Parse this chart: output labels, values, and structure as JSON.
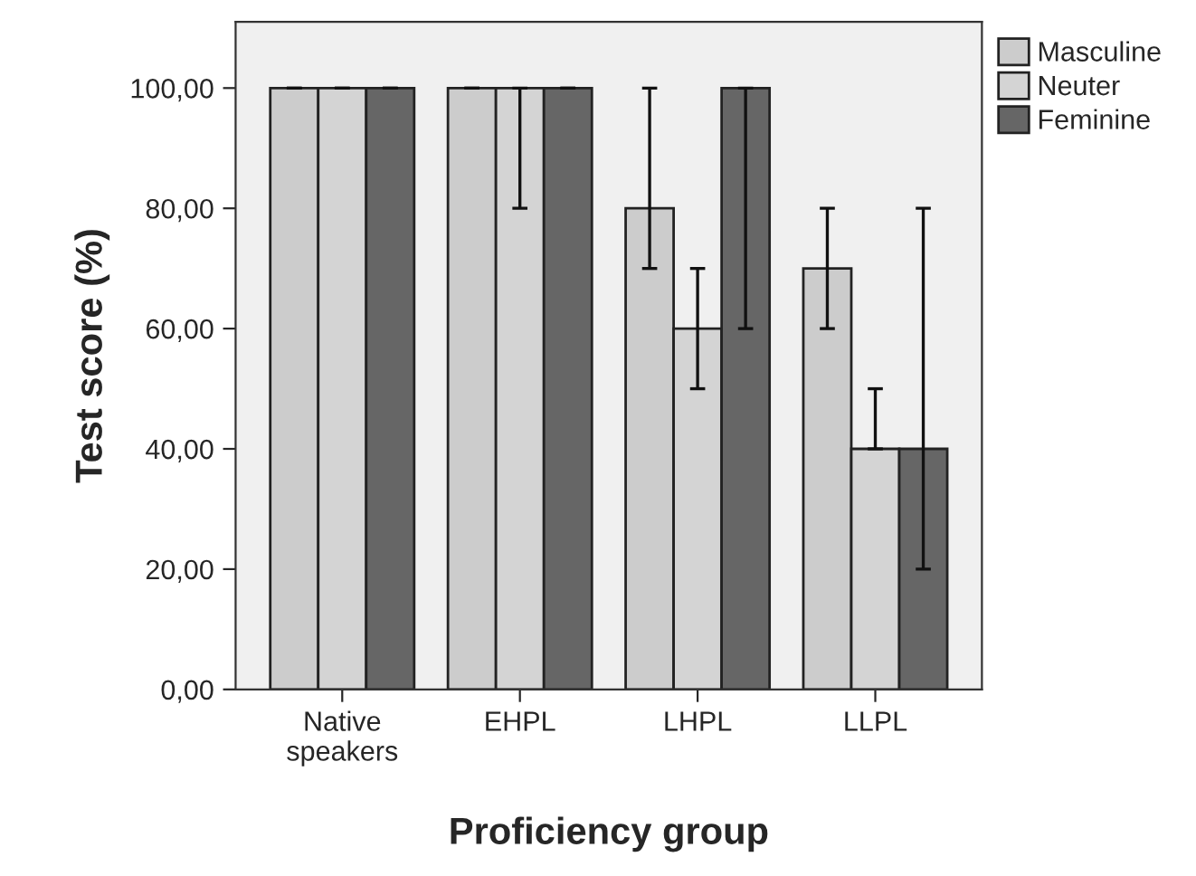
{
  "chart_data": {
    "type": "bar",
    "xlabel": "Proficiency group",
    "ylabel": "Test score (%)",
    "categories": [
      "Native\nspeakers",
      "EHPL",
      "LHPL",
      "LLPL"
    ],
    "series": [
      {
        "name": "Masculine",
        "color": "#cccccc",
        "values": [
          100,
          100,
          80,
          70
        ],
        "errors": [
          [
            100,
            100
          ],
          [
            100,
            100
          ],
          [
            70,
            100
          ],
          [
            60,
            80
          ]
        ]
      },
      {
        "name": "Neuter",
        "color": "#d4d4d4",
        "values": [
          100,
          100,
          60,
          40
        ],
        "errors": [
          [
            100,
            100
          ],
          [
            80,
            100
          ],
          [
            50,
            70
          ],
          [
            40,
            50
          ]
        ]
      },
      {
        "name": "Feminine",
        "color": "#666666",
        "values": [
          100,
          100,
          100,
          40
        ],
        "errors": [
          [
            100,
            100
          ],
          [
            100,
            100
          ],
          [
            60,
            100
          ],
          [
            20,
            80
          ]
        ]
      }
    ],
    "ylim": [
      0,
      111
    ],
    "yticks": [
      {
        "value": 0,
        "label": "0,00"
      },
      {
        "value": 20,
        "label": "20,00"
      },
      {
        "value": 40,
        "label": "40,00"
      },
      {
        "value": 60,
        "label": "60,00"
      },
      {
        "value": 80,
        "label": "80,00"
      },
      {
        "value": 100,
        "label": "100,00"
      }
    ],
    "grid": false,
    "legend": "top right"
  }
}
